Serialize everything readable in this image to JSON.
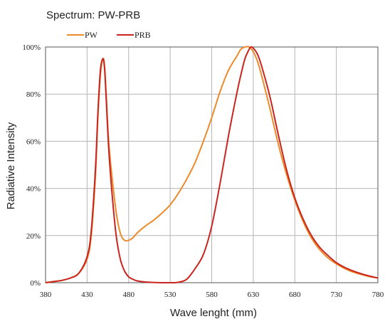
{
  "chart_data": {
    "type": "line",
    "title": "Spectrum: PW-PRB",
    "xlabel": "Wave lenght (mm)",
    "ylabel": "Radiative Intensity",
    "xlim": [
      380,
      780
    ],
    "ylim": [
      0,
      100
    ],
    "x_ticks": [
      380,
      430,
      480,
      530,
      580,
      630,
      680,
      730,
      780
    ],
    "y_ticks": [
      0,
      20,
      40,
      60,
      80,
      100
    ],
    "y_tick_labels": [
      "0%",
      "20%",
      "40%",
      "60%",
      "80%",
      "100%"
    ],
    "grid": true,
    "legend_position": "top-left",
    "series": [
      {
        "name": "PW",
        "color": "#ED8A2B",
        "x": [
          380,
          390,
          400,
          410,
          420,
          430,
          435,
          440,
          443,
          446,
          449,
          451,
          453,
          456,
          460,
          465,
          470,
          475,
          480,
          485,
          490,
          500,
          510,
          520,
          530,
          540,
          550,
          560,
          570,
          580,
          590,
          600,
          610,
          615,
          620,
          625,
          630,
          635,
          640,
          650,
          660,
          670,
          680,
          690,
          700,
          710,
          720,
          730,
          740,
          750,
          760,
          770,
          780
        ],
        "y": [
          0,
          0.5,
          1,
          2,
          4,
          10,
          20,
          45,
          70,
          88,
          95,
          92,
          80,
          60,
          45,
          30,
          21,
          18,
          18,
          19,
          21,
          24,
          26.5,
          29.5,
          33,
          38,
          44,
          51,
          60,
          70,
          81,
          90,
          96,
          99,
          100,
          100,
          98,
          94,
          88,
          74,
          59,
          46,
          35,
          26,
          19,
          14,
          10.5,
          8,
          6,
          4.5,
          3.5,
          2.6,
          2
        ]
      },
      {
        "name": "PRB",
        "color": "#C9251E",
        "x": [
          380,
          390,
          400,
          410,
          420,
          430,
          435,
          440,
          443,
          446,
          449,
          451,
          453,
          456,
          460,
          465,
          470,
          475,
          480,
          485,
          490,
          500,
          510,
          520,
          530,
          540,
          550,
          560,
          570,
          580,
          590,
          600,
          610,
          615,
          620,
          625,
          627,
          630,
          635,
          640,
          650,
          660,
          670,
          680,
          690,
          700,
          710,
          720,
          730,
          740,
          750,
          760,
          770,
          780
        ],
        "y": [
          0,
          0.5,
          1,
          2,
          4,
          11,
          22,
          48,
          72,
          90,
          95,
          91,
          78,
          57,
          38,
          20,
          10,
          5,
          2.5,
          1.5,
          0.8,
          0.3,
          0.1,
          0,
          0,
          0.2,
          1.5,
          6,
          12,
          24,
          42,
          62,
          80,
          88,
          95,
          99,
          100,
          99.5,
          97,
          92,
          79,
          63,
          48,
          36,
          27,
          20,
          15,
          11.5,
          8.5,
          6.5,
          5,
          3.8,
          2.8,
          2
        ]
      }
    ]
  }
}
